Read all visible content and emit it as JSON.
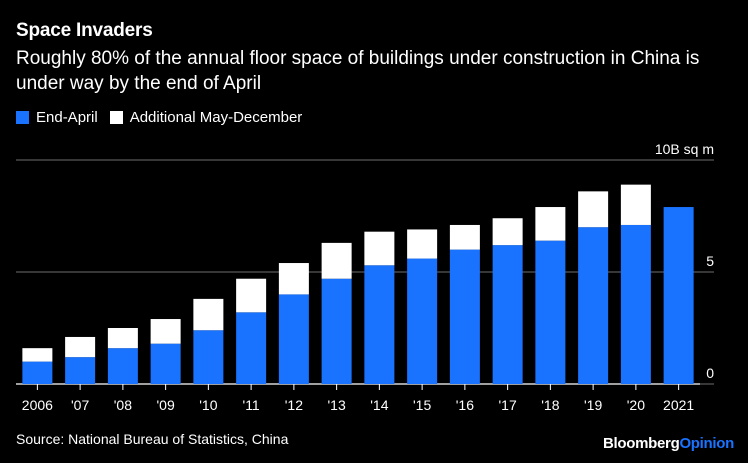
{
  "title": "Space Invaders",
  "subtitle": "Roughly 80% of the annual floor space of buildings under construction in China is under way by the end of April",
  "legend": {
    "end_april": "End-April",
    "additional": "Additional May-December"
  },
  "source": "Source: National Bureau of Statistics, China",
  "brand": {
    "part1": "Bloomberg",
    "part2": "Opinion"
  },
  "colors": {
    "end_april": "#1a73ff",
    "additional": "#ffffff",
    "background": "#000000"
  },
  "chart_data": {
    "type": "bar",
    "stacked": true,
    "categories": [
      "2006",
      "'07",
      "'08",
      "'09",
      "'10",
      "'11",
      "'12",
      "'13",
      "'14",
      "'15",
      "'16",
      "'17",
      "'18",
      "'19",
      "'20",
      "2021"
    ],
    "series": [
      {
        "name": "End-April",
        "values": [
          1.0,
          1.2,
          1.6,
          1.8,
          2.4,
          3.2,
          4.0,
          4.7,
          5.3,
          5.6,
          6.0,
          6.2,
          6.4,
          7.0,
          7.1,
          7.9
        ]
      },
      {
        "name": "Additional May-December",
        "values": [
          0.6,
          0.9,
          0.9,
          1.1,
          1.4,
          1.5,
          1.4,
          1.6,
          1.5,
          1.3,
          1.1,
          1.2,
          1.5,
          1.6,
          1.8,
          0
        ]
      }
    ],
    "yunit_label": "10B sq m",
    "yticks": [
      0,
      5,
      10
    ],
    "ylim": [
      0,
      10
    ],
    "ytick_labels": [
      "0",
      "5",
      ""
    ]
  }
}
